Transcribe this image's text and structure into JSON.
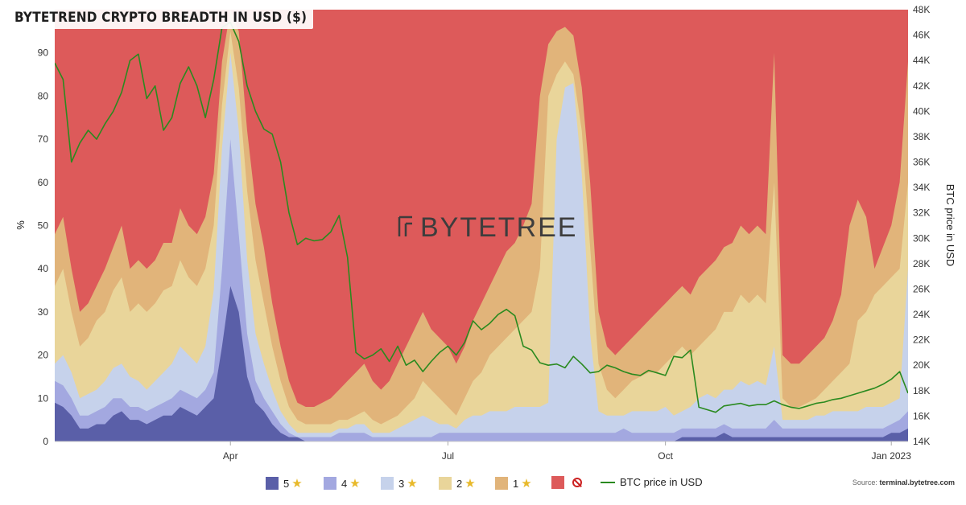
{
  "title": "BYTETREND CRYPTO BREADTH IN USD ($)",
  "watermark": "BYTETREE",
  "source_label": "Source:",
  "source_site": "terminal.bytetree.com",
  "chart_data": {
    "type": "area",
    "stacked": true,
    "x_axis": {
      "tick_labels": [
        "Apr",
        "Jul",
        "Oct",
        "Jan 2023"
      ],
      "tick_index": [
        21,
        47,
        73,
        100
      ]
    },
    "y_left": {
      "label": "%",
      "range": [
        0,
        100
      ],
      "ticks": [
        0,
        10,
        20,
        30,
        40,
        50,
        60,
        70,
        80,
        90
      ]
    },
    "y_right": {
      "label": "BTC price in USD",
      "range": [
        14000,
        48000
      ],
      "ticks": [
        "14K",
        "16K",
        "18K",
        "20K",
        "22K",
        "24K",
        "26K",
        "28K",
        "30K",
        "32K",
        "34K",
        "36K",
        "38K",
        "40K",
        "42K",
        "44K",
        "46K",
        "48K"
      ]
    },
    "legend": [
      {
        "label": "5",
        "color": "#5a5fa8",
        "marker": "star"
      },
      {
        "label": "4",
        "color": "#a3a8e0",
        "marker": "star"
      },
      {
        "label": "3",
        "color": "#c6d2eb",
        "marker": "star"
      },
      {
        "label": "2",
        "color": "#e9d59a",
        "marker": "star"
      },
      {
        "label": "1",
        "color": "#e1b47a",
        "marker": "star"
      },
      {
        "label": "",
        "color": "#dd5a5a",
        "marker": "no-sign"
      },
      {
        "label": "BTC price in USD",
        "color": "#2a8a1f",
        "marker": "line"
      }
    ],
    "series_cumulative": [
      {
        "name": "5",
        "values": [
          9,
          8,
          6,
          3,
          3,
          4,
          4,
          6,
          7,
          5,
          5,
          4,
          5,
          6,
          6,
          8,
          7,
          6,
          8,
          10,
          22,
          36,
          30,
          15,
          9,
          7,
          4,
          2,
          1,
          1,
          0,
          0,
          0,
          0,
          0,
          0,
          0,
          0,
          0,
          0,
          0,
          0,
          0,
          0,
          0,
          0,
          0,
          0,
          0,
          0,
          0,
          0,
          0,
          0,
          0,
          0,
          0,
          0,
          0,
          0,
          0,
          0,
          0,
          0,
          0,
          0,
          0,
          0,
          0,
          0,
          0,
          0,
          0,
          0,
          0,
          1,
          1,
          1,
          1,
          1,
          2,
          1,
          1,
          1,
          1,
          1,
          1,
          1,
          1,
          1,
          1,
          1,
          1,
          1,
          1,
          1,
          1,
          1,
          1,
          1,
          2,
          2,
          3
        ]
      },
      {
        "name": "4",
        "values": [
          14,
          13,
          10,
          6,
          6,
          7,
          8,
          10,
          10,
          8,
          8,
          7,
          8,
          9,
          10,
          12,
          11,
          10,
          12,
          16,
          40,
          70,
          48,
          25,
          14,
          10,
          7,
          4,
          2,
          1,
          1,
          1,
          1,
          1,
          2,
          2,
          2,
          2,
          1,
          1,
          1,
          1,
          1,
          1,
          1,
          1,
          2,
          2,
          2,
          2,
          2,
          2,
          2,
          2,
          2,
          2,
          2,
          2,
          2,
          2,
          2,
          2,
          2,
          2,
          2,
          2,
          2,
          2,
          3,
          2,
          2,
          2,
          2,
          2,
          2,
          3,
          3,
          3,
          3,
          3,
          4,
          3,
          3,
          3,
          3,
          3,
          5,
          3,
          3,
          3,
          3,
          3,
          3,
          3,
          3,
          3,
          3,
          3,
          3,
          3,
          4,
          5,
          7
        ]
      },
      {
        "name": "3",
        "values": [
          18,
          20,
          16,
          10,
          11,
          12,
          14,
          17,
          18,
          15,
          14,
          12,
          14,
          16,
          18,
          22,
          20,
          18,
          22,
          35,
          68,
          90,
          72,
          42,
          25,
          18,
          12,
          7,
          4,
          2,
          2,
          2,
          2,
          2,
          3,
          3,
          4,
          4,
          2,
          2,
          2,
          3,
          4,
          5,
          6,
          5,
          4,
          4,
          3,
          5,
          6,
          6,
          7,
          7,
          7,
          8,
          8,
          8,
          8,
          9,
          70,
          82,
          83,
          62,
          25,
          7,
          6,
          6,
          6,
          7,
          7,
          7,
          7,
          8,
          6,
          7,
          8,
          10,
          11,
          10,
          12,
          12,
          14,
          13,
          14,
          13,
          22,
          5,
          5,
          5,
          5,
          6,
          6,
          7,
          7,
          7,
          7,
          8,
          8,
          8,
          9,
          10,
          40
        ]
      },
      {
        "name": "2",
        "values": [
          36,
          40,
          30,
          22,
          24,
          28,
          30,
          35,
          38,
          30,
          32,
          30,
          32,
          35,
          36,
          42,
          38,
          36,
          40,
          50,
          78,
          95,
          82,
          58,
          42,
          32,
          22,
          14,
          8,
          5,
          4,
          4,
          4,
          4,
          5,
          5,
          6,
          7,
          5,
          4,
          5,
          6,
          8,
          10,
          14,
          12,
          10,
          8,
          6,
          10,
          14,
          16,
          20,
          22,
          24,
          26,
          28,
          30,
          40,
          80,
          85,
          88,
          85,
          72,
          45,
          18,
          12,
          10,
          12,
          14,
          15,
          16,
          16,
          18,
          20,
          22,
          20,
          22,
          24,
          26,
          30,
          30,
          34,
          32,
          34,
          32,
          60,
          10,
          8,
          8,
          9,
          10,
          12,
          14,
          16,
          18,
          28,
          30,
          34,
          36,
          38,
          40,
          60
        ]
      },
      {
        "name": "1",
        "values": [
          48,
          52,
          40,
          30,
          32,
          36,
          40,
          45,
          50,
          40,
          42,
          40,
          42,
          46,
          46,
          54,
          50,
          48,
          52,
          62,
          88,
          100,
          95,
          72,
          55,
          45,
          32,
          22,
          14,
          9,
          8,
          8,
          9,
          10,
          12,
          14,
          16,
          18,
          14,
          12,
          14,
          18,
          22,
          26,
          30,
          26,
          24,
          22,
          18,
          22,
          28,
          32,
          36,
          40,
          44,
          46,
          50,
          55,
          80,
          92,
          95,
          96,
          94,
          82,
          60,
          30,
          22,
          20,
          22,
          24,
          26,
          28,
          30,
          32,
          34,
          36,
          34,
          38,
          40,
          42,
          45,
          46,
          50,
          48,
          50,
          48,
          90,
          20,
          18,
          18,
          20,
          22,
          24,
          28,
          34,
          50,
          56,
          52,
          40,
          45,
          50,
          60,
          88
        ]
      }
    ],
    "btc_price_usd": [
      43800,
      42500,
      36000,
      37500,
      38500,
      37800,
      39000,
      40000,
      41500,
      44000,
      44500,
      41000,
      42000,
      38500,
      39500,
      42200,
      43500,
      42000,
      39500,
      42500,
      46600,
      47000,
      45500,
      42000,
      40000,
      38600,
      38200,
      36000,
      32000,
      29500,
      30000,
      29800,
      29900,
      30500,
      31800,
      28500,
      21000,
      20500,
      20800,
      21300,
      20300,
      21500,
      20000,
      20400,
      19500,
      20300,
      21000,
      21500,
      20800,
      21800,
      23500,
      22800,
      23300,
      24000,
      24400,
      23900,
      21500,
      21200,
      20200,
      20000,
      20100,
      19800,
      20700,
      20100,
      19400,
      19500,
      20000,
      19800,
      19500,
      19300,
      19200,
      19600,
      19400,
      19200,
      20700,
      20600,
      21200,
      16700,
      16500,
      16300,
      16800,
      16900,
      17000,
      16800,
      16900,
      16900,
      17200,
      16900,
      16700,
      16600,
      16800,
      17000,
      17100,
      17300,
      17400,
      17600,
      17800,
      18000,
      18200,
      18500,
      18900,
      19500,
      17800
    ]
  }
}
